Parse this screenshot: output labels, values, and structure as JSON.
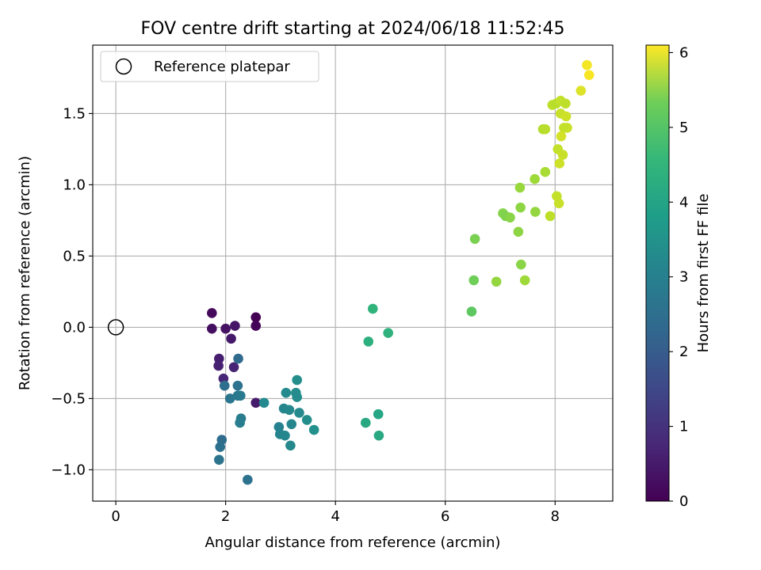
{
  "chart_data": {
    "type": "scatter",
    "title": "FOV centre drift starting at 2024/06/18 11:52:45",
    "xlabel": "Angular distance from reference (arcmin)",
    "ylabel": "Rotation from reference (arcmin)",
    "xlim": [
      -0.42,
      9.05
    ],
    "ylim": [
      -1.22,
      1.98
    ],
    "xticks": [
      0,
      2,
      4,
      6,
      8
    ],
    "yticks": [
      -1.0,
      -0.5,
      0.0,
      0.5,
      1.0,
      1.5
    ],
    "xtick_labels": [
      "0",
      "2",
      "4",
      "6",
      "8"
    ],
    "ytick_labels": [
      "−1.0",
      "−0.5",
      "0.0",
      "0.5",
      "1.0",
      "1.5"
    ],
    "grid": true,
    "legend": {
      "placement": "upper-left",
      "entries": [
        "Reference platepar"
      ]
    },
    "colorbar": {
      "label": "Hours from first FF file",
      "colormap": "viridis",
      "range": [
        0,
        6.1
      ],
      "ticks": [
        0,
        1,
        2,
        3,
        4,
        5,
        6
      ],
      "tick_labels": [
        "0",
        "1",
        "2",
        "3",
        "4",
        "5",
        "6"
      ]
    },
    "reference_point": {
      "x": 0,
      "y": 0
    },
    "points": [
      {
        "x": 2.55,
        "y": 0.07,
        "t": 0.0
      },
      {
        "x": 2.55,
        "y": 0.01,
        "t": 0.05
      },
      {
        "x": 1.75,
        "y": 0.1,
        "t": 0.15
      },
      {
        "x": 1.75,
        "y": -0.01,
        "t": 0.25
      },
      {
        "x": 2.0,
        "y": -0.01,
        "t": 0.3
      },
      {
        "x": 2.17,
        "y": 0.01,
        "t": 0.35
      },
      {
        "x": 2.1,
        "y": -0.08,
        "t": 0.4
      },
      {
        "x": 2.55,
        "y": -0.53,
        "t": 0.45
      },
      {
        "x": 1.88,
        "y": -0.22,
        "t": 0.5
      },
      {
        "x": 1.87,
        "y": -0.27,
        "t": 0.55
      },
      {
        "x": 2.15,
        "y": -0.28,
        "t": 0.6
      },
      {
        "x": 1.96,
        "y": -0.36,
        "t": 0.65
      },
      {
        "x": 2.23,
        "y": -0.22,
        "t": 2.1
      },
      {
        "x": 1.98,
        "y": -0.41,
        "t": 2.2
      },
      {
        "x": 2.22,
        "y": -0.41,
        "t": 2.3
      },
      {
        "x": 2.08,
        "y": -0.5,
        "t": 2.4
      },
      {
        "x": 2.22,
        "y": -0.48,
        "t": 2.45
      },
      {
        "x": 2.27,
        "y": -0.48,
        "t": 2.5
      },
      {
        "x": 2.28,
        "y": -0.64,
        "t": 2.55
      },
      {
        "x": 2.26,
        "y": -0.67,
        "t": 2.6
      },
      {
        "x": 1.93,
        "y": -0.79,
        "t": 2.15
      },
      {
        "x": 1.9,
        "y": -0.84,
        "t": 2.25
      },
      {
        "x": 1.88,
        "y": -0.93,
        "t": 2.35
      },
      {
        "x": 2.4,
        "y": -1.07,
        "t": 2.3
      },
      {
        "x": 2.7,
        "y": -0.53,
        "t": 2.9
      },
      {
        "x": 2.97,
        "y": -0.7,
        "t": 2.7
      },
      {
        "x": 2.99,
        "y": -0.75,
        "t": 2.75
      },
      {
        "x": 3.08,
        "y": -0.76,
        "t": 2.8
      },
      {
        "x": 3.18,
        "y": -0.83,
        "t": 2.85
      },
      {
        "x": 3.06,
        "y": -0.57,
        "t": 2.8
      },
      {
        "x": 3.16,
        "y": -0.58,
        "t": 2.85
      },
      {
        "x": 3.2,
        "y": -0.68,
        "t": 2.8
      },
      {
        "x": 3.1,
        "y": -0.46,
        "t": 2.9
      },
      {
        "x": 3.28,
        "y": -0.46,
        "t": 2.95
      },
      {
        "x": 3.3,
        "y": -0.49,
        "t": 2.95
      },
      {
        "x": 3.3,
        "y": -0.37,
        "t": 3.0
      },
      {
        "x": 3.34,
        "y": -0.6,
        "t": 2.9
      },
      {
        "x": 3.48,
        "y": -0.65,
        "t": 3.0
      },
      {
        "x": 3.61,
        "y": -0.72,
        "t": 3.05
      },
      {
        "x": 4.55,
        "y": -0.67,
        "t": 3.65
      },
      {
        "x": 4.78,
        "y": -0.61,
        "t": 3.6
      },
      {
        "x": 4.79,
        "y": -0.76,
        "t": 3.7
      },
      {
        "x": 4.6,
        "y": -0.1,
        "t": 3.85
      },
      {
        "x": 4.68,
        "y": 0.13,
        "t": 3.95
      },
      {
        "x": 4.96,
        "y": -0.04,
        "t": 3.9
      },
      {
        "x": 6.48,
        "y": 0.11,
        "t": 4.55
      },
      {
        "x": 6.52,
        "y": 0.33,
        "t": 4.75
      },
      {
        "x": 6.54,
        "y": 0.62,
        "t": 4.85
      },
      {
        "x": 6.93,
        "y": 0.32,
        "t": 5.1
      },
      {
        "x": 7.05,
        "y": 0.8,
        "t": 4.95
      },
      {
        "x": 7.1,
        "y": 0.78,
        "t": 4.9
      },
      {
        "x": 7.18,
        "y": 0.77,
        "t": 5.0
      },
      {
        "x": 7.33,
        "y": 0.67,
        "t": 5.05
      },
      {
        "x": 7.37,
        "y": 0.84,
        "t": 5.05
      },
      {
        "x": 7.36,
        "y": 0.98,
        "t": 5.15
      },
      {
        "x": 7.38,
        "y": 0.44,
        "t": 5.0
      },
      {
        "x": 7.45,
        "y": 0.33,
        "t": 5.2
      },
      {
        "x": 7.64,
        "y": 0.81,
        "t": 5.1
      },
      {
        "x": 7.63,
        "y": 1.04,
        "t": 5.2
      },
      {
        "x": 7.82,
        "y": 1.09,
        "t": 5.3
      },
      {
        "x": 7.78,
        "y": 1.39,
        "t": 5.4
      },
      {
        "x": 7.82,
        "y": 1.39,
        "t": 5.45
      },
      {
        "x": 7.91,
        "y": 0.78,
        "t": 5.5
      },
      {
        "x": 8.03,
        "y": 0.92,
        "t": 5.55
      },
      {
        "x": 8.07,
        "y": 0.87,
        "t": 5.6
      },
      {
        "x": 7.95,
        "y": 1.56,
        "t": 5.5
      },
      {
        "x": 8.02,
        "y": 1.57,
        "t": 5.45
      },
      {
        "x": 8.1,
        "y": 1.59,
        "t": 5.55
      },
      {
        "x": 8.19,
        "y": 1.57,
        "t": 5.5
      },
      {
        "x": 8.1,
        "y": 1.5,
        "t": 5.6
      },
      {
        "x": 8.2,
        "y": 1.48,
        "t": 5.65
      },
      {
        "x": 8.22,
        "y": 1.4,
        "t": 5.6
      },
      {
        "x": 8.16,
        "y": 1.4,
        "t": 5.55
      },
      {
        "x": 8.11,
        "y": 1.34,
        "t": 5.7
      },
      {
        "x": 8.05,
        "y": 1.25,
        "t": 5.55
      },
      {
        "x": 8.14,
        "y": 1.21,
        "t": 5.6
      },
      {
        "x": 8.08,
        "y": 1.15,
        "t": 5.65
      },
      {
        "x": 8.47,
        "y": 1.66,
        "t": 5.8
      },
      {
        "x": 8.58,
        "y": 1.84,
        "t": 6.0
      },
      {
        "x": 8.62,
        "y": 1.77,
        "t": 6.05
      }
    ]
  }
}
